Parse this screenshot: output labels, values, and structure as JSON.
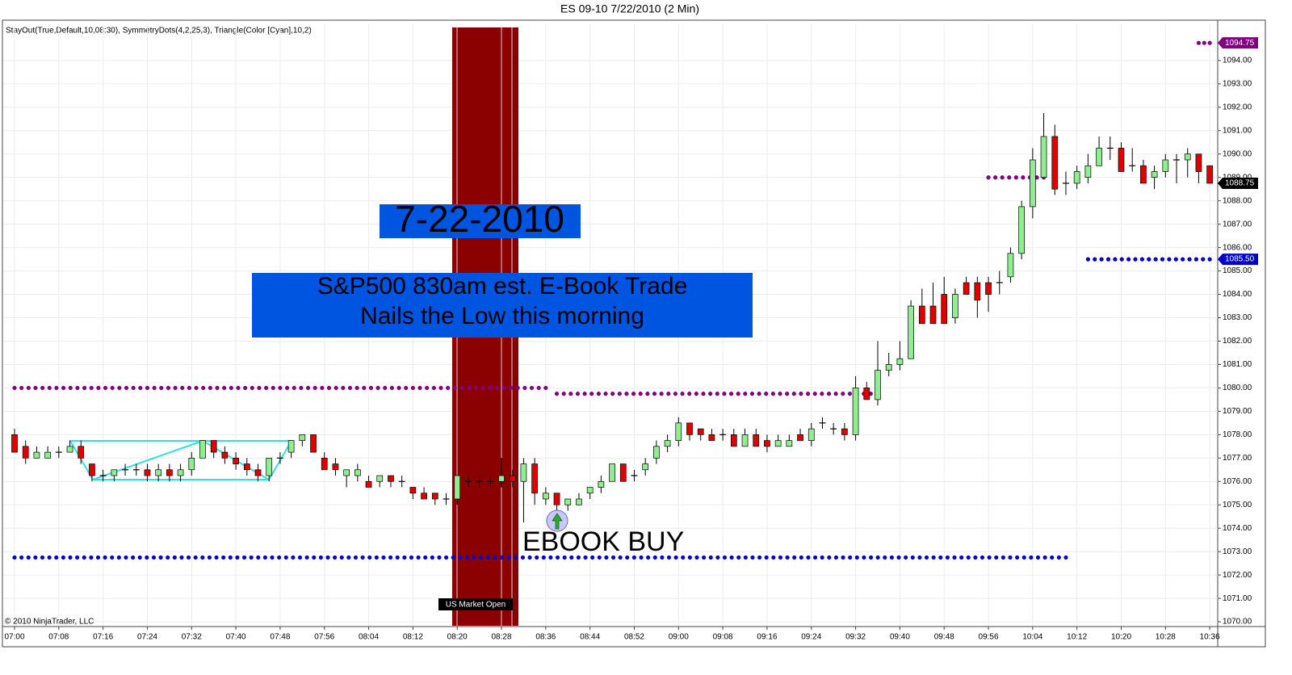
{
  "chart_data": {
    "type": "candlestick",
    "title": "ES 09-10  7/22/2010 (2 Min)",
    "indicators": "StayOut(True,Default,10,08:30), SymmetryDots(4,2,25,3), Triangle(Color [Cyan],10,2)",
    "copyright": "© 2010 NinjaTrader, LLC",
    "categories": [
      "07:00",
      null,
      null,
      null,
      "07:08",
      null,
      null,
      null,
      "07:16",
      null,
      null,
      null,
      "07:24",
      null,
      null,
      null,
      "07:32",
      null,
      null,
      null,
      "07:40",
      null,
      null,
      null,
      "07:48",
      null,
      null,
      null,
      "07:56",
      null,
      null,
      null,
      "08:04",
      null,
      null,
      null,
      "08:12",
      null,
      null,
      null,
      "08:20",
      null,
      null,
      null,
      "08:28",
      null,
      null,
      null,
      "08:36",
      null,
      null,
      null,
      "08:44",
      null,
      null,
      null,
      "08:52",
      null,
      null,
      null,
      "09:00",
      null,
      null,
      null,
      "09:08",
      null,
      null,
      null,
      "09:16",
      null,
      null,
      null,
      "09:24",
      null,
      null,
      null,
      "09:32",
      null,
      null,
      null,
      "09:40",
      null,
      null,
      null,
      "09:48",
      null,
      null,
      null,
      "09:56",
      null,
      null,
      null,
      "10:04",
      null,
      null,
      null,
      "10:12",
      null,
      null,
      null,
      "10:20",
      null,
      null,
      null,
      "10:28",
      null,
      null,
      null,
      "10:36"
    ],
    "open": [
      1078,
      1077.5,
      1077,
      1077,
      1077.25,
      1077.25,
      1077.5,
      1076.75,
      1076.25,
      1076.25,
      1076.5,
      1076.5,
      1076.5,
      1076.25,
      1076.5,
      1076.25,
      1076.5,
      1077,
      1077.75,
      1077.25,
      1077,
      1076.75,
      1076.5,
      1076.25,
      1077,
      1077.25,
      1077.75,
      1078,
      1077,
      1076.75,
      1076.25,
      1076.25,
      1076,
      1076,
      1076.25,
      1076,
      1075.75,
      1075.5,
      1075.5,
      1075.25,
      1075.25,
      1076,
      1076,
      1076,
      1076,
      1076.25,
      1076,
      1076.75,
      1075.25,
      1075.5,
      1075,
      1075,
      1075.5,
      1075.75,
      1076,
      1076.75,
      1076.25,
      1076.5,
      1077,
      1077.5,
      1077.75,
      1078.5,
      1078.25,
      1078,
      1078,
      1078,
      1077.5,
      1078,
      1077.75,
      1077.5,
      1077.5,
      1078,
      1077.75,
      1078.5,
      1078.25,
      1078.25,
      1078,
      1080,
      1079.5,
      1080.75,
      1081,
      1081.25,
      1083.5,
      1083.5,
      1084,
      1083,
      1084.5,
      1084.5,
      1084.5,
      1084.5,
      1084.75,
      1085.75,
      1087.75,
      1089,
      1090.75,
      1088.75,
      1088.75,
      1089,
      1089.5,
      1090.25,
      1090.25,
      1089.5,
      1089.5,
      1089,
      1089.25,
      1089.75,
      1089.75,
      1090,
      1089.5
    ],
    "high": [
      1078.25,
      1077.75,
      1077.5,
      1077.5,
      1077.5,
      1077.75,
      1077.75,
      1076.75,
      1076.5,
      1076.5,
      1076.75,
      1076.75,
      1076.75,
      1076.75,
      1076.75,
      1076.75,
      1077.25,
      1077.75,
      1077.75,
      1077.5,
      1077.25,
      1077,
      1076.75,
      1077,
      1077.25,
      1077.75,
      1078,
      1078,
      1077.25,
      1077,
      1076.5,
      1076.75,
      1076.25,
      1076.25,
      1076.25,
      1076.25,
      1075.75,
      1075.75,
      1075.5,
      1075.5,
      1076.25,
      1076.25,
      1076.25,
      1076.25,
      1077,
      1076.5,
      1077,
      1077,
      1075.75,
      1075.5,
      1075.25,
      1075.5,
      1075.75,
      1076.25,
      1076.75,
      1076.75,
      1076.5,
      1077,
      1077.75,
      1078,
      1078.75,
      1078.5,
      1078.25,
      1078.25,
      1078.25,
      1078.25,
      1078.25,
      1078.25,
      1078,
      1078,
      1078,
      1078.25,
      1078.5,
      1078.75,
      1078.5,
      1078.5,
      1080.5,
      1080.25,
      1082,
      1081.5,
      1082,
      1083.75,
      1084.25,
      1084.5,
      1084.75,
      1084.25,
      1084.75,
      1084.75,
      1084.75,
      1085,
      1086,
      1088,
      1090.25,
      1091.75,
      1091.25,
      1089.25,
      1089.5,
      1090,
      1090.75,
      1090.75,
      1090.5,
      1090.25,
      1089.75,
      1089.5,
      1090,
      1090,
      1090.25,
      1090,
      1089.5
    ],
    "low": [
      1077.25,
      1076.75,
      1077,
      1077,
      1077,
      1077.25,
      1076.75,
      1076,
      1076,
      1076,
      1076.25,
      1076.25,
      1076,
      1076,
      1076,
      1076,
      1076.25,
      1077,
      1077,
      1076.75,
      1076.5,
      1076.25,
      1076,
      1076,
      1076.75,
      1077,
      1077.5,
      1077.25,
      1076.5,
      1076.25,
      1075.75,
      1076,
      1075.75,
      1075.75,
      1075.75,
      1075.75,
      1075.25,
      1075.25,
      1075,
      1075,
      1075,
      1075.75,
      1075.75,
      1075.75,
      1075.75,
      1075.75,
      1074.25,
      1075,
      1075,
      1074.5,
      1074.75,
      1075,
      1075.25,
      1075.5,
      1076,
      1076,
      1076,
      1076.25,
      1076.75,
      1077.25,
      1077.5,
      1077.75,
      1077.75,
      1077.75,
      1077.75,
      1077.5,
      1077.5,
      1077.5,
      1077.25,
      1077.5,
      1077.5,
      1077.75,
      1077.5,
      1078.25,
      1078,
      1077.75,
      1077.75,
      1079.5,
      1079.25,
      1080.5,
      1080.75,
      1081.25,
      1082.75,
      1082.75,
      1082.75,
      1082.75,
      1084,
      1083,
      1083.25,
      1084,
      1084.5,
      1085.5,
      1087.25,
      1089,
      1088.25,
      1088.25,
      1088.5,
      1088.75,
      1089.5,
      1089.75,
      1089.25,
      1089.25,
      1088.75,
      1088.5,
      1089,
      1088.75,
      1089,
      1088.75,
      1088.75
    ],
    "close": [
      1077.25,
      1077,
      1077.25,
      1077.25,
      1077.25,
      1077.5,
      1077,
      1076.25,
      1076.25,
      1076.5,
      1076.5,
      1076.5,
      1076.25,
      1076.5,
      1076.25,
      1076.5,
      1077,
      1077.75,
      1077.25,
      1077,
      1076.75,
      1076.5,
      1076.25,
      1077,
      1077,
      1077.75,
      1078,
      1077.25,
      1076.5,
      1076.5,
      1076.5,
      1076.5,
      1075.75,
      1076.25,
      1076,
      1076,
      1075.5,
      1075.25,
      1075.25,
      1075.25,
      1076.25,
      1076,
      1076,
      1076,
      1076.25,
      1076,
      1076.75,
      1075.5,
      1075.5,
      1075,
      1075.25,
      1075.25,
      1075.75,
      1076,
      1076.75,
      1076,
      1076.25,
      1076.75,
      1077.5,
      1077.75,
      1078.5,
      1078,
      1078,
      1077.75,
      1078,
      1077.5,
      1078,
      1077.5,
      1077.5,
      1077.75,
      1077.75,
      1077.75,
      1078.25,
      1078.5,
      1078.25,
      1078,
      1080,
      1079.5,
      1080.75,
      1081,
      1081.25,
      1083.5,
      1082.75,
      1082.75,
      1082.75,
      1084,
      1084,
      1083.75,
      1084,
      1084.5,
      1085.75,
      1087.75,
      1089.75,
      1090.75,
      1088.5,
      1088.75,
      1089.25,
      1089.5,
      1090.25,
      1090.25,
      1089.25,
      1089.5,
      1088.75,
      1089.25,
      1089.75,
      1089.75,
      1090,
      1089.25,
      1088.75
    ],
    "up_color": "#90ee90",
    "down_color": "#e00000",
    "ylim": [
      1069.83,
      1095.55
    ],
    "yticks": [
      {
        "value": 1070,
        "label": "1070.00"
      },
      {
        "value": 1071,
        "label": "1071.00"
      },
      {
        "value": 1072,
        "label": "1072.00"
      },
      {
        "value": 1073,
        "label": "1073.00"
      },
      {
        "value": 1074,
        "label": "1074.00"
      },
      {
        "value": 1075,
        "label": "1075.00"
      },
      {
        "value": 1076,
        "label": "1076.00"
      },
      {
        "value": 1077,
        "label": "1077.00"
      },
      {
        "value": 1078,
        "label": "1078.00"
      },
      {
        "value": 1079,
        "label": "1079.00"
      },
      {
        "value": 1080,
        "label": "1080.00"
      },
      {
        "value": 1081,
        "label": "1081.00"
      },
      {
        "value": 1082,
        "label": "1082.00"
      },
      {
        "value": 1083,
        "label": "1083.00"
      },
      {
        "value": 1084,
        "label": "1084.00"
      },
      {
        "value": 1085,
        "label": "1085.00"
      },
      {
        "value": 1086,
        "label": "1086.00"
      },
      {
        "value": 1087,
        "label": "1087.00"
      },
      {
        "value": 1088,
        "label": "1088.00"
      },
      {
        "value": 1089,
        "label": "1089.00"
      },
      {
        "value": 1090,
        "label": "1090.00"
      },
      {
        "value": 1091,
        "label": "1091.00"
      },
      {
        "value": 1092,
        "label": "1092.00"
      },
      {
        "value": 1093,
        "label": "1093.00"
      },
      {
        "value": 1094,
        "label": "1094.00"
      }
    ],
    "grid": true,
    "levels": [
      {
        "value": 1080,
        "from": 0,
        "to": 48,
        "color": "#800080"
      },
      {
        "value": 1079.75,
        "from": 49,
        "to": 78,
        "color": "#800080"
      },
      {
        "value": 1072.75,
        "from": 0,
        "to": 95,
        "color": "#0000cd"
      },
      {
        "value": 1089,
        "from": 88,
        "to": 93,
        "color": "#800080"
      },
      {
        "value": 1085.5,
        "from": 97,
        "to": 108,
        "color": "#0000cd"
      },
      {
        "value": 1094.75,
        "from": 107,
        "to": 108,
        "color": "#800080"
      }
    ],
    "price_markers": [
      {
        "value": 1094.75,
        "label": "1094.75",
        "color": "#800080"
      },
      {
        "value": 1088.75,
        "label": "1088.75",
        "color": "#000000"
      },
      {
        "value": 1085.5,
        "label": "1085.50",
        "color": "#0000cd"
      }
    ],
    "annotations": {
      "date": "7-22-2010",
      "headline": [
        "S&P500 830am est. E-Book Trade",
        "Nails the Low this morning"
      ],
      "signal": "EBOOK BUY",
      "session": "US Market Open"
    }
  }
}
